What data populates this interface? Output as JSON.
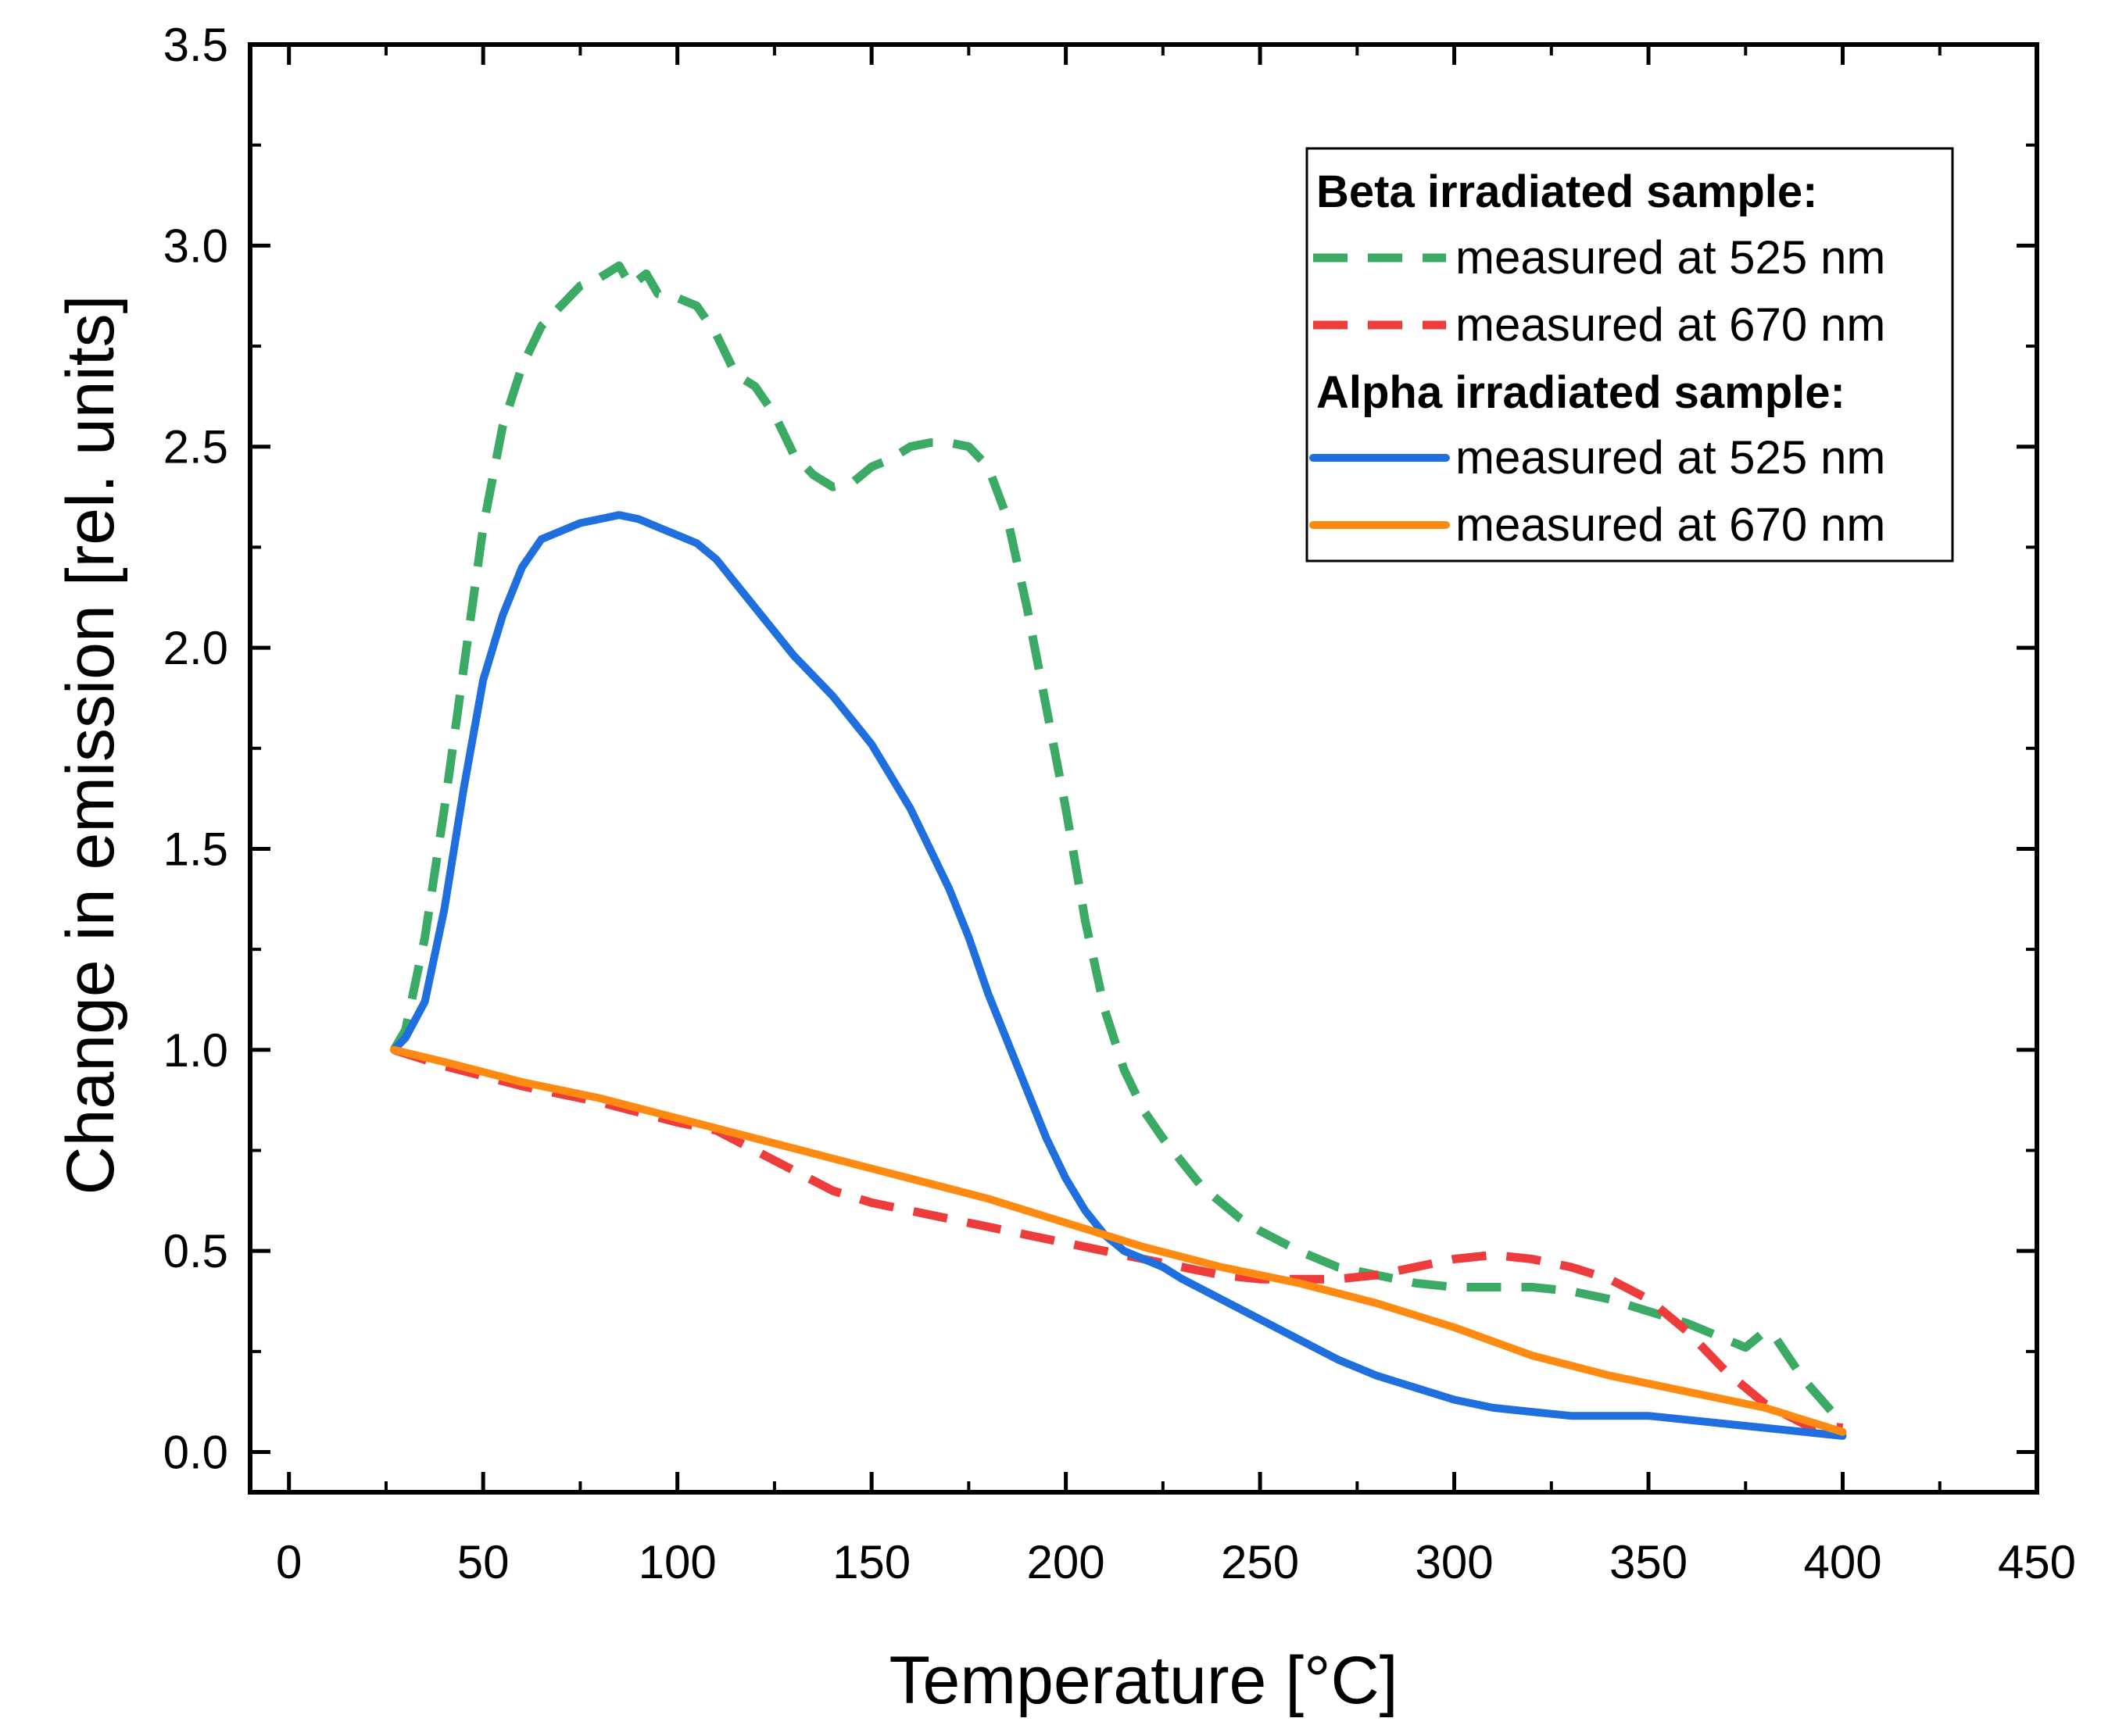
{
  "chart_data": {
    "type": "line",
    "title": "",
    "xlabel": "Temperature [°C]",
    "ylabel": "Change in emission [rel. units]",
    "xlim": [
      -10,
      450
    ],
    "ylim": [
      -0.1,
      3.5
    ],
    "xticks": [
      0,
      50,
      100,
      150,
      200,
      250,
      300,
      350,
      400,
      450
    ],
    "yticks": [
      0.0,
      0.5,
      1.0,
      1.5,
      2.0,
      2.5,
      3.0,
      3.5
    ],
    "xtick_labels": [
      "0",
      "50",
      "100",
      "150",
      "200",
      "250",
      "300",
      "350",
      "400",
      "450"
    ],
    "ytick_labels": [
      "0.0",
      "0.5",
      "1.0",
      "1.5",
      "2.0",
      "2.5",
      "3.0",
      "3.5"
    ],
    "legend_position": "top-right",
    "legend": {
      "groups": [
        {
          "heading": "Beta irradiated sample:",
          "entries": [
            "measured at 525 nm",
            "measured at 670 nm"
          ]
        },
        {
          "heading": "Alpha irradiated sample:",
          "entries": [
            "measured at 525 nm",
            "measured at 670 nm"
          ]
        }
      ]
    },
    "series": [
      {
        "name": "Beta irradiated sample: measured at 525 nm",
        "group": "beta",
        "style": "dashed",
        "color": "#3aaa64",
        "x": [
          27,
          30,
          35,
          40,
          45,
          50,
          55,
          60,
          65,
          70,
          75,
          80,
          85,
          88,
          92,
          95,
          100,
          105,
          110,
          115,
          120,
          125,
          130,
          135,
          140,
          145,
          150,
          155,
          160,
          165,
          170,
          175,
          180,
          185,
          190,
          195,
          200,
          205,
          210,
          215,
          220,
          225,
          230,
          235,
          240,
          245,
          250,
          260,
          270,
          280,
          290,
          300,
          310,
          320,
          330,
          340,
          350,
          360,
          370,
          375,
          380,
          383,
          390,
          400
        ],
        "y": [
          1.0,
          1.05,
          1.28,
          1.6,
          1.95,
          2.3,
          2.55,
          2.7,
          2.8,
          2.85,
          2.9,
          2.92,
          2.95,
          2.9,
          2.93,
          2.88,
          2.87,
          2.85,
          2.78,
          2.68,
          2.65,
          2.58,
          2.48,
          2.43,
          2.4,
          2.41,
          2.45,
          2.47,
          2.5,
          2.51,
          2.51,
          2.5,
          2.45,
          2.32,
          2.1,
          1.85,
          1.6,
          1.32,
          1.1,
          0.95,
          0.85,
          0.78,
          0.72,
          0.66,
          0.62,
          0.58,
          0.55,
          0.5,
          0.46,
          0.44,
          0.42,
          0.41,
          0.41,
          0.41,
          0.4,
          0.38,
          0.35,
          0.32,
          0.28,
          0.26,
          0.3,
          0.28,
          0.18,
          0.07
        ]
      },
      {
        "name": "Beta irradiated sample: measured at 670 nm",
        "group": "beta",
        "style": "dashed",
        "color": "#ee3b3b",
        "x": [
          27,
          40,
          60,
          80,
          100,
          110,
          120,
          130,
          140,
          150,
          160,
          170,
          180,
          190,
          200,
          210,
          220,
          230,
          240,
          250,
          260,
          270,
          280,
          290,
          300,
          310,
          320,
          330,
          340,
          350,
          360,
          370,
          380,
          390,
          400
        ],
        "y": [
          1.0,
          0.96,
          0.91,
          0.87,
          0.82,
          0.8,
          0.75,
          0.7,
          0.65,
          0.62,
          0.6,
          0.58,
          0.56,
          0.54,
          0.52,
          0.5,
          0.48,
          0.46,
          0.44,
          0.43,
          0.43,
          0.43,
          0.44,
          0.46,
          0.48,
          0.49,
          0.48,
          0.46,
          0.43,
          0.38,
          0.3,
          0.2,
          0.12,
          0.07,
          0.06
        ]
      },
      {
        "name": "Alpha irradiated sample: measured at 525 nm",
        "group": "alpha",
        "style": "solid",
        "color": "#1f6fde",
        "x": [
          27,
          30,
          35,
          40,
          45,
          50,
          55,
          60,
          65,
          70,
          75,
          80,
          85,
          90,
          95,
          100,
          105,
          110,
          115,
          120,
          125,
          130,
          135,
          140,
          145,
          150,
          155,
          160,
          165,
          170,
          175,
          180,
          185,
          190,
          195,
          200,
          205,
          210,
          215,
          220,
          225,
          230,
          240,
          250,
          260,
          270,
          280,
          290,
          300,
          310,
          320,
          330,
          340,
          350,
          360,
          370,
          380,
          390,
          400
        ],
        "y": [
          1.0,
          1.03,
          1.12,
          1.35,
          1.65,
          1.92,
          2.08,
          2.2,
          2.27,
          2.29,
          2.31,
          2.32,
          2.33,
          2.32,
          2.3,
          2.28,
          2.26,
          2.22,
          2.16,
          2.1,
          2.04,
          1.98,
          1.93,
          1.88,
          1.82,
          1.76,
          1.68,
          1.6,
          1.5,
          1.4,
          1.28,
          1.14,
          1.02,
          0.9,
          0.78,
          0.68,
          0.6,
          0.54,
          0.5,
          0.48,
          0.46,
          0.43,
          0.38,
          0.33,
          0.28,
          0.23,
          0.19,
          0.16,
          0.13,
          0.11,
          0.1,
          0.09,
          0.09,
          0.09,
          0.08,
          0.07,
          0.06,
          0.05,
          0.04
        ]
      },
      {
        "name": "Alpha irradiated sample: measured at 670 nm",
        "group": "alpha",
        "style": "solid",
        "color": "#ff8a12",
        "x": [
          27,
          40,
          60,
          80,
          100,
          120,
          140,
          160,
          180,
          200,
          220,
          240,
          260,
          280,
          300,
          320,
          340,
          360,
          380,
          400
        ],
        "y": [
          1.0,
          0.97,
          0.92,
          0.88,
          0.83,
          0.78,
          0.73,
          0.68,
          0.63,
          0.57,
          0.51,
          0.46,
          0.42,
          0.37,
          0.31,
          0.24,
          0.19,
          0.15,
          0.11,
          0.05
        ]
      }
    ]
  }
}
